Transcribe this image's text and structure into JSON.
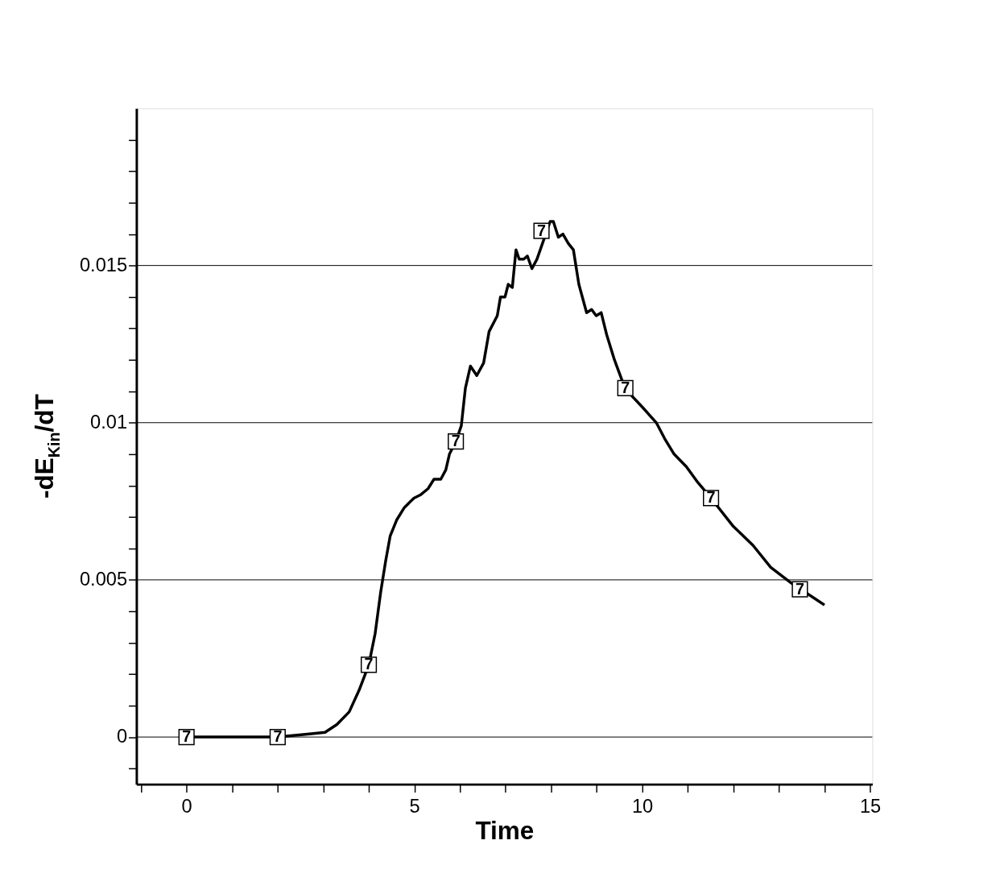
{
  "chart_data": {
    "type": "line",
    "xlabel": "Time",
    "ylabel": "-dE$_{Kin}$/dT",
    "x": [
      0,
      0.96,
      2,
      2.7,
      3.04,
      3.3,
      3.57,
      3.79,
      4.0,
      4.14,
      4.26,
      4.37,
      4.47,
      4.61,
      4.78,
      4.99,
      5.13,
      5.3,
      5.43,
      5.58,
      5.69,
      5.77,
      5.91,
      6.03,
      6.12,
      6.23,
      6.37,
      6.52,
      6.64,
      6.82,
      6.89,
      6.99,
      7.06,
      7.15,
      7.23,
      7.3,
      7.4,
      7.48,
      7.58,
      7.69,
      7.98,
      8.05,
      8.16,
      8.26,
      8.38,
      8.49,
      8.61,
      8.78,
      8.89,
      8.99,
      9.1,
      9.22,
      9.39,
      9.57,
      9.74,
      10.0,
      10.31,
      10.49,
      10.7,
      10.97,
      11.22,
      11.51,
      12.0,
      12.43,
      12.82,
      13.27,
      14.0
    ],
    "series": [
      {
        "color": "#000000",
        "values": [
          0,
          0,
          0,
          0.0001,
          0.00015,
          0.0004,
          0.0008,
          0.0015,
          0.0023,
          0.0033,
          0.0046,
          0.0056,
          0.0064,
          0.0069,
          0.0073,
          0.0076,
          0.0077,
          0.0079,
          0.0082,
          0.0082,
          0.0085,
          0.009,
          0.0094,
          0.0099,
          0.0111,
          0.0118,
          0.0115,
          0.0119,
          0.0129,
          0.0134,
          0.014,
          0.014,
          0.0144,
          0.0143,
          0.0155,
          0.0152,
          0.0152,
          0.0153,
          0.0149,
          0.0152,
          0.0164,
          0.0164,
          0.0159,
          0.016,
          0.0157,
          0.0155,
          0.0144,
          0.0135,
          0.0136,
          0.0134,
          0.0135,
          0.0128,
          0.012,
          0.0113,
          0.0109,
          0.0105,
          0.01,
          0.0095,
          0.009,
          0.0086,
          0.0081,
          0.0076,
          0.0067,
          0.0061,
          0.0054,
          0.0049,
          0.0042
        ]
      }
    ],
    "annotations": [
      {
        "text": "7",
        "x": 0,
        "y": 0
      },
      {
        "text": "7",
        "x": 2,
        "y": 0
      },
      {
        "text": "7",
        "x": 4.0,
        "y": 0.0023
      },
      {
        "text": "7",
        "x": 5.91,
        "y": 0.0094
      },
      {
        "text": "7",
        "x": 7.79,
        "y": 0.0161
      },
      {
        "text": "7",
        "x": 9.63,
        "y": 0.0111
      },
      {
        "text": "7",
        "x": 11.51,
        "y": 0.0076
      },
      {
        "text": "7",
        "x": 13.46,
        "y": 0.0047
      }
    ],
    "xlim": [
      -1.1,
      15.05
    ],
    "ylim": [
      -0.0015,
      0.02
    ],
    "xticks": [
      {
        "value": -1,
        "label": null
      },
      0,
      {
        "value": 1,
        "label": null
      },
      {
        "value": 2,
        "label": null
      },
      {
        "value": 3,
        "label": null
      },
      {
        "value": 4,
        "label": null
      },
      5,
      {
        "value": 6,
        "label": null
      },
      {
        "value": 7,
        "label": null
      },
      {
        "value": 8,
        "label": null
      },
      {
        "value": 9,
        "label": null
      },
      10,
      {
        "value": 11,
        "label": null
      },
      {
        "value": 12,
        "label": null
      },
      {
        "value": 13,
        "label": null
      },
      {
        "value": 14,
        "label": null
      },
      15
    ],
    "yticks": [
      {
        "value": -0.001,
        "label": null
      },
      0,
      {
        "value": 0.001,
        "label": null
      },
      {
        "value": 0.002,
        "label": null
      },
      {
        "value": 0.003,
        "label": null
      },
      {
        "value": 0.004,
        "label": null
      },
      0.005,
      {
        "value": 0.006,
        "label": null
      },
      {
        "value": 0.007,
        "label": null
      },
      {
        "value": 0.008,
        "label": null
      },
      {
        "value": 0.009,
        "label": null
      },
      0.01,
      {
        "value": 0.011,
        "label": null
      },
      {
        "value": 0.012,
        "label": null
      },
      {
        "value": 0.013,
        "label": null
      },
      {
        "value": 0.014,
        "label": null
      },
      0.015,
      {
        "value": 0.016,
        "label": null
      },
      {
        "value": 0.017,
        "label": null
      },
      {
        "value": 0.018,
        "label": null
      },
      {
        "value": 0.019,
        "label": null
      }
    ],
    "grid": "y",
    "line_style": "solid"
  }
}
